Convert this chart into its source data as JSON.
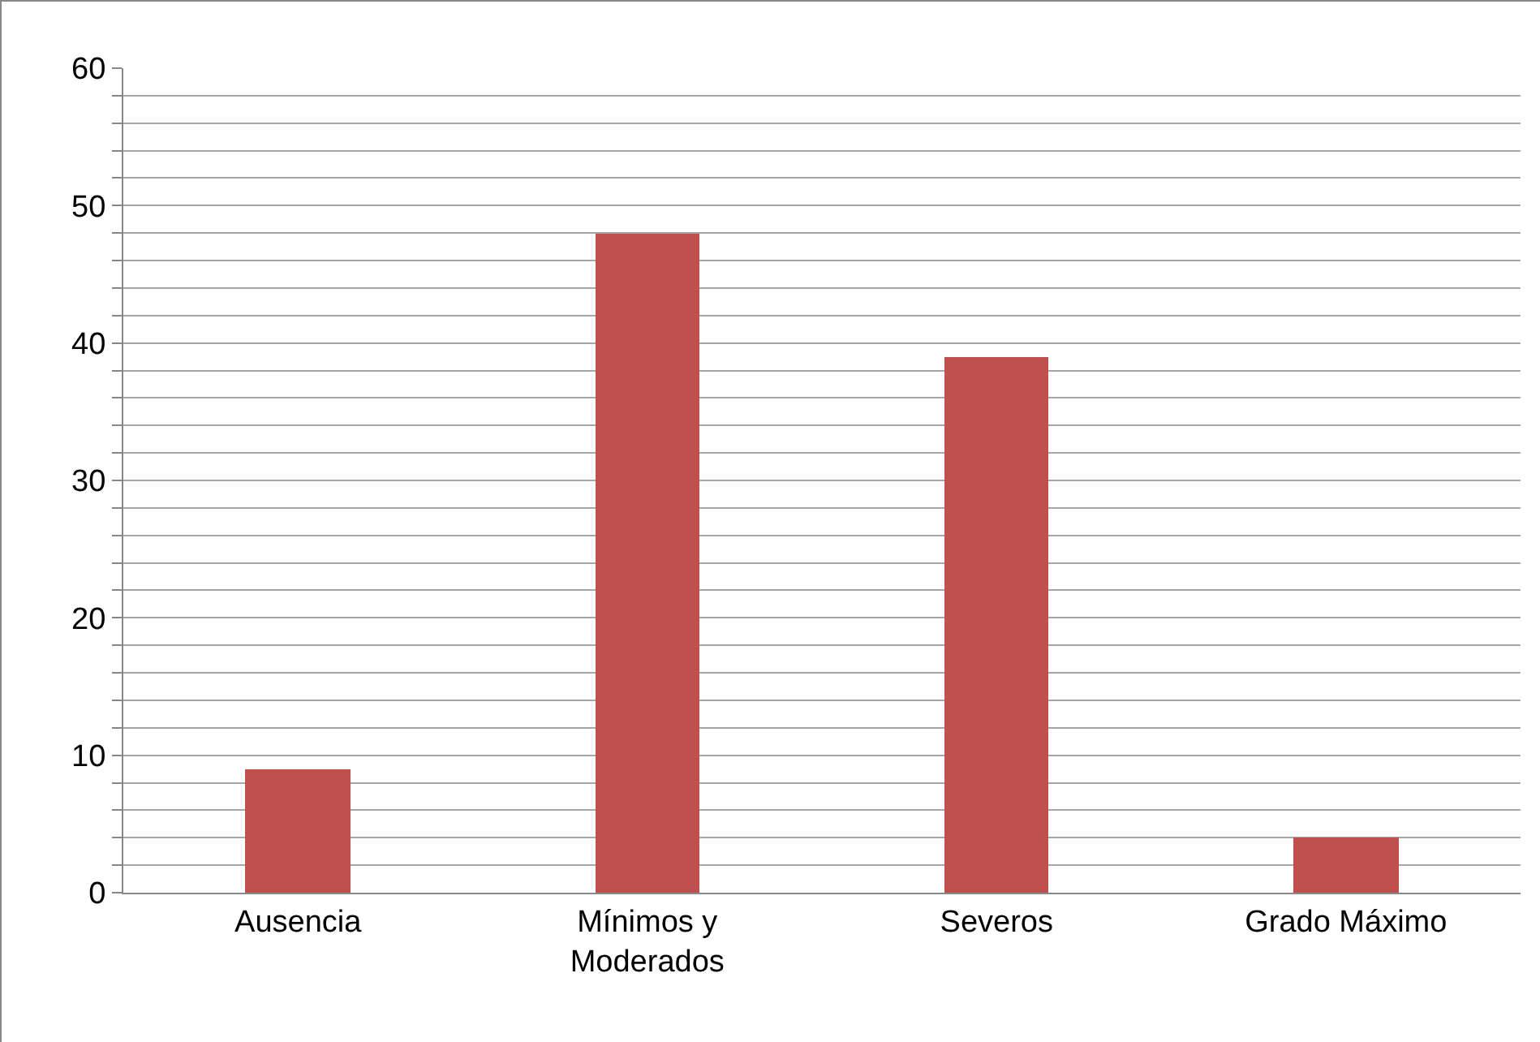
{
  "chart_data": {
    "type": "bar",
    "categories": [
      "Ausencia",
      "Mínimos y Moderados",
      "Severos",
      "Grado Máximo"
    ],
    "values": [
      9,
      48,
      39,
      4
    ],
    "color": "#c0504d",
    "ylim": [
      0,
      60
    ],
    "yticks": [
      0,
      {
        "value": 2,
        "label": null
      },
      {
        "value": 4,
        "label": null
      },
      {
        "value": 6,
        "label": null
      },
      {
        "value": 8,
        "label": null
      },
      10,
      {
        "value": 12,
        "label": null
      },
      {
        "value": 14,
        "label": null
      },
      {
        "value": 16,
        "label": null
      },
      {
        "value": 18,
        "label": null
      },
      20,
      {
        "value": 22,
        "label": null
      },
      {
        "value": 24,
        "label": null
      },
      {
        "value": 26,
        "label": null
      },
      {
        "value": 28,
        "label": null
      },
      30,
      {
        "value": 32,
        "label": null
      },
      {
        "value": 34,
        "label": null
      },
      {
        "value": 36,
        "label": null
      },
      {
        "value": 38,
        "label": null
      },
      40,
      {
        "value": 42,
        "label": null
      },
      {
        "value": 44,
        "label": null
      },
      {
        "value": 46,
        "label": null
      },
      {
        "value": 48,
        "label": null
      },
      50,
      {
        "value": 52,
        "label": null
      },
      {
        "value": 54,
        "label": null
      },
      {
        "value": 56,
        "label": null
      },
      {
        "value": 58,
        "label": null
      },
      60
    ],
    "grid": true
  }
}
